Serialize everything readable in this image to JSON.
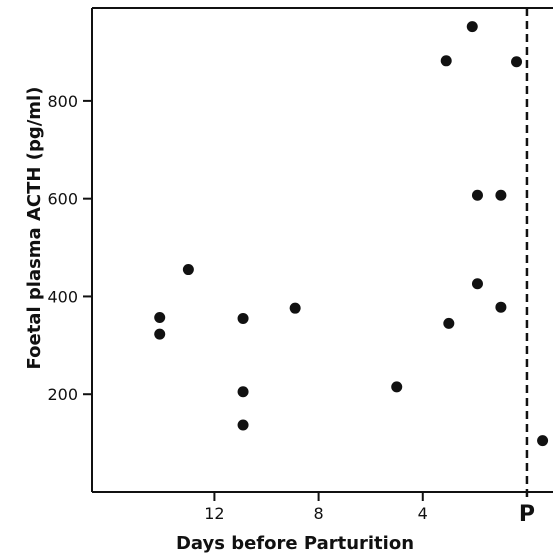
{
  "chart_data": {
    "type": "scatter",
    "xlabel": "Days before Parturition",
    "ylabel": "Foetal plasma ACTH (pg/ml)",
    "x_reversed": true,
    "xlim": [
      16.7,
      -1.0
    ],
    "ylim": [
      0,
      990
    ],
    "x_ticks": [
      12,
      8,
      4
    ],
    "y_ticks": [
      200,
      400,
      600,
      800
    ],
    "parturition_line": {
      "x": 0,
      "label": "P",
      "style": "dashed"
    },
    "grid": false,
    "legend": "none",
    "points": [
      {
        "x": 14.1,
        "y": 357
      },
      {
        "x": 14.1,
        "y": 323
      },
      {
        "x": 13.0,
        "y": 455
      },
      {
        "x": 10.9,
        "y": 355
      },
      {
        "x": 10.9,
        "y": 205
      },
      {
        "x": 10.9,
        "y": 137
      },
      {
        "x": 8.9,
        "y": 376
      },
      {
        "x": 5.0,
        "y": 215
      },
      {
        "x": 3.1,
        "y": 882
      },
      {
        "x": 3.0,
        "y": 345
      },
      {
        "x": 2.1,
        "y": 952
      },
      {
        "x": 1.9,
        "y": 607
      },
      {
        "x": 1.9,
        "y": 426
      },
      {
        "x": 1.0,
        "y": 607
      },
      {
        "x": 1.0,
        "y": 378
      },
      {
        "x": 0.4,
        "y": 880
      },
      {
        "x": -0.6,
        "y": 105
      }
    ],
    "point_color": "#111111",
    "axis_color": "#111111"
  }
}
